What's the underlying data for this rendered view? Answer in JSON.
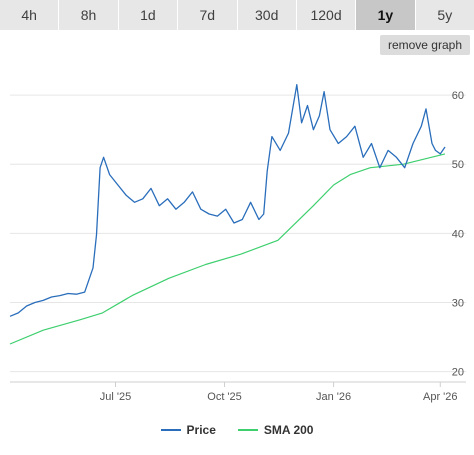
{
  "tabs": [
    {
      "label": "4h",
      "active": false
    },
    {
      "label": "8h",
      "active": false
    },
    {
      "label": "1d",
      "active": false
    },
    {
      "label": "7d",
      "active": false
    },
    {
      "label": "30d",
      "active": false
    },
    {
      "label": "120d",
      "active": false
    },
    {
      "label": "1y",
      "active": true
    },
    {
      "label": "5y",
      "active": false
    }
  ],
  "remove_graph_label": "remove graph",
  "chart_data": {
    "type": "line",
    "x_ticks": [
      "Jul '25",
      "Oct '25",
      "Jan '26",
      "Apr '26"
    ],
    "x_tick_dates": [
      "2025-07-01",
      "2025-10-01",
      "2026-01-01",
      "2026-04-01"
    ],
    "x_range": [
      "2025-04-03",
      "2026-04-05"
    ],
    "ylim": [
      18.5,
      64.5
    ],
    "y_ticks": [
      20,
      30,
      40,
      50,
      60
    ],
    "grid": true,
    "legend_position": "bottom",
    "series": [
      {
        "name": "Price",
        "color": "#2a6ebb",
        "points": [
          [
            "2025-04-03",
            28.0
          ],
          [
            "2025-04-10",
            28.5
          ],
          [
            "2025-04-17",
            29.5
          ],
          [
            "2025-04-24",
            30.0
          ],
          [
            "2025-05-01",
            30.3
          ],
          [
            "2025-05-08",
            30.8
          ],
          [
            "2025-05-15",
            31.0
          ],
          [
            "2025-05-22",
            31.3
          ],
          [
            "2025-05-29",
            31.2
          ],
          [
            "2025-06-05",
            31.5
          ],
          [
            "2025-06-12",
            35.0
          ],
          [
            "2025-06-15",
            39.8
          ],
          [
            "2025-06-18",
            49.5
          ],
          [
            "2025-06-21",
            51.0
          ],
          [
            "2025-06-26",
            48.5
          ],
          [
            "2025-07-03",
            47.0
          ],
          [
            "2025-07-10",
            45.5
          ],
          [
            "2025-07-17",
            44.5
          ],
          [
            "2025-07-24",
            45.0
          ],
          [
            "2025-07-31",
            46.5
          ],
          [
            "2025-08-07",
            44.0
          ],
          [
            "2025-08-14",
            45.0
          ],
          [
            "2025-08-21",
            43.5
          ],
          [
            "2025-08-28",
            44.5
          ],
          [
            "2025-09-04",
            46.0
          ],
          [
            "2025-09-11",
            43.5
          ],
          [
            "2025-09-18",
            42.8
          ],
          [
            "2025-09-25",
            42.5
          ],
          [
            "2025-10-02",
            43.5
          ],
          [
            "2025-10-09",
            41.5
          ],
          [
            "2025-10-16",
            42.0
          ],
          [
            "2025-10-23",
            44.5
          ],
          [
            "2025-10-30",
            42.0
          ],
          [
            "2025-11-03",
            42.8
          ],
          [
            "2025-11-06",
            49.0
          ],
          [
            "2025-11-10",
            54.0
          ],
          [
            "2025-11-17",
            52.0
          ],
          [
            "2025-11-24",
            54.5
          ],
          [
            "2025-12-01",
            61.5
          ],
          [
            "2025-12-05",
            56.0
          ],
          [
            "2025-12-10",
            58.5
          ],
          [
            "2025-12-15",
            55.0
          ],
          [
            "2025-12-20",
            57.0
          ],
          [
            "2025-12-24",
            60.5
          ],
          [
            "2025-12-29",
            55.0
          ],
          [
            "2026-01-05",
            53.0
          ],
          [
            "2026-01-12",
            54.0
          ],
          [
            "2026-01-19",
            55.5
          ],
          [
            "2026-01-26",
            51.0
          ],
          [
            "2026-02-02",
            53.0
          ],
          [
            "2026-02-09",
            49.5
          ],
          [
            "2026-02-16",
            52.0
          ],
          [
            "2026-02-23",
            51.0
          ],
          [
            "2026-03-02",
            49.5
          ],
          [
            "2026-03-09",
            53.0
          ],
          [
            "2026-03-16",
            55.5
          ],
          [
            "2026-03-20",
            58.0
          ],
          [
            "2026-03-25",
            53.0
          ],
          [
            "2026-03-28",
            52.0
          ],
          [
            "2026-04-01",
            51.5
          ],
          [
            "2026-04-05",
            52.5
          ]
        ]
      },
      {
        "name": "SMA 200",
        "color": "#3ecf6e",
        "points": [
          [
            "2025-04-03",
            24.0
          ],
          [
            "2025-05-01",
            26.0
          ],
          [
            "2025-06-01",
            27.5
          ],
          [
            "2025-06-20",
            28.5
          ],
          [
            "2025-07-15",
            31.0
          ],
          [
            "2025-08-15",
            33.5
          ],
          [
            "2025-09-15",
            35.5
          ],
          [
            "2025-10-15",
            37.0
          ],
          [
            "2025-11-15",
            39.0
          ],
          [
            "2025-12-15",
            44.0
          ],
          [
            "2026-01-01",
            47.0
          ],
          [
            "2026-01-15",
            48.5
          ],
          [
            "2026-02-01",
            49.5
          ],
          [
            "2026-03-01",
            50.0
          ],
          [
            "2026-04-05",
            51.5
          ]
        ]
      }
    ]
  }
}
